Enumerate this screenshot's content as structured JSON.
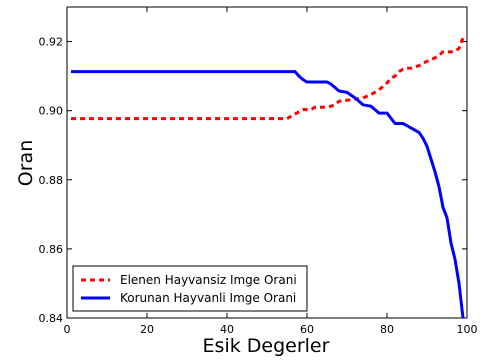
{
  "chart_data": {
    "type": "line",
    "title": "",
    "xlabel": "Esik Degerler",
    "ylabel": "Oran",
    "xlim": [
      0,
      100
    ],
    "ylim": [
      0.84,
      0.93
    ],
    "xticks": [
      0,
      20,
      40,
      60,
      80,
      100
    ],
    "yticks": [
      0.84,
      0.86,
      0.88,
      0.9,
      0.92
    ],
    "xtick_labels": [
      "0",
      "20",
      "40",
      "60",
      "80",
      "100"
    ],
    "ytick_labels": [
      "0.84",
      "0.86",
      "0.88",
      "0.90",
      "0.92"
    ],
    "grid": false,
    "legend_position": "lower-left",
    "series": [
      {
        "name": "Elenen Hayvansiz Imge Orani",
        "color": "#ff0000",
        "style": "dashed",
        "x": [
          1,
          20,
          40,
          54,
          55,
          57,
          59,
          61,
          62,
          64,
          66,
          67,
          68,
          70,
          72,
          74,
          76,
          77,
          78,
          80,
          81,
          82,
          83,
          84,
          85,
          86,
          87,
          88,
          89,
          90,
          91,
          92,
          93,
          94,
          95,
          96,
          97,
          98,
          99
        ],
        "y": [
          0.8977,
          0.8977,
          0.8977,
          0.8977,
          0.8977,
          0.899,
          0.9003,
          0.9003,
          0.901,
          0.901,
          0.9013,
          0.9017,
          0.9027,
          0.903,
          0.9033,
          0.9037,
          0.9047,
          0.9053,
          0.906,
          0.908,
          0.9093,
          0.91,
          0.9113,
          0.912,
          0.9123,
          0.9123,
          0.9127,
          0.913,
          0.9137,
          0.9143,
          0.9147,
          0.9153,
          0.916,
          0.917,
          0.917,
          0.917,
          0.9173,
          0.918,
          0.921
        ]
      },
      {
        "name": "Korunan Hayvanli Imge Orani",
        "color": "#0000ff",
        "style": "solid",
        "x": [
          1,
          20,
          40,
          57,
          58,
          59,
          60,
          62,
          64,
          65,
          66,
          68,
          70,
          72,
          74,
          76,
          78,
          80,
          82,
          84,
          86,
          88,
          89,
          90,
          91,
          92,
          93,
          94,
          95,
          96,
          97,
          98,
          99
        ],
        "y": [
          0.9113,
          0.9113,
          0.9113,
          0.9113,
          0.91,
          0.909,
          0.9083,
          0.9083,
          0.9083,
          0.9083,
          0.9077,
          0.9057,
          0.9053,
          0.9037,
          0.9017,
          0.9013,
          0.8993,
          0.8993,
          0.8963,
          0.8963,
          0.895,
          0.8937,
          0.892,
          0.8897,
          0.886,
          0.8823,
          0.878,
          0.872,
          0.869,
          0.8617,
          0.857,
          0.85,
          0.84
        ]
      }
    ]
  }
}
